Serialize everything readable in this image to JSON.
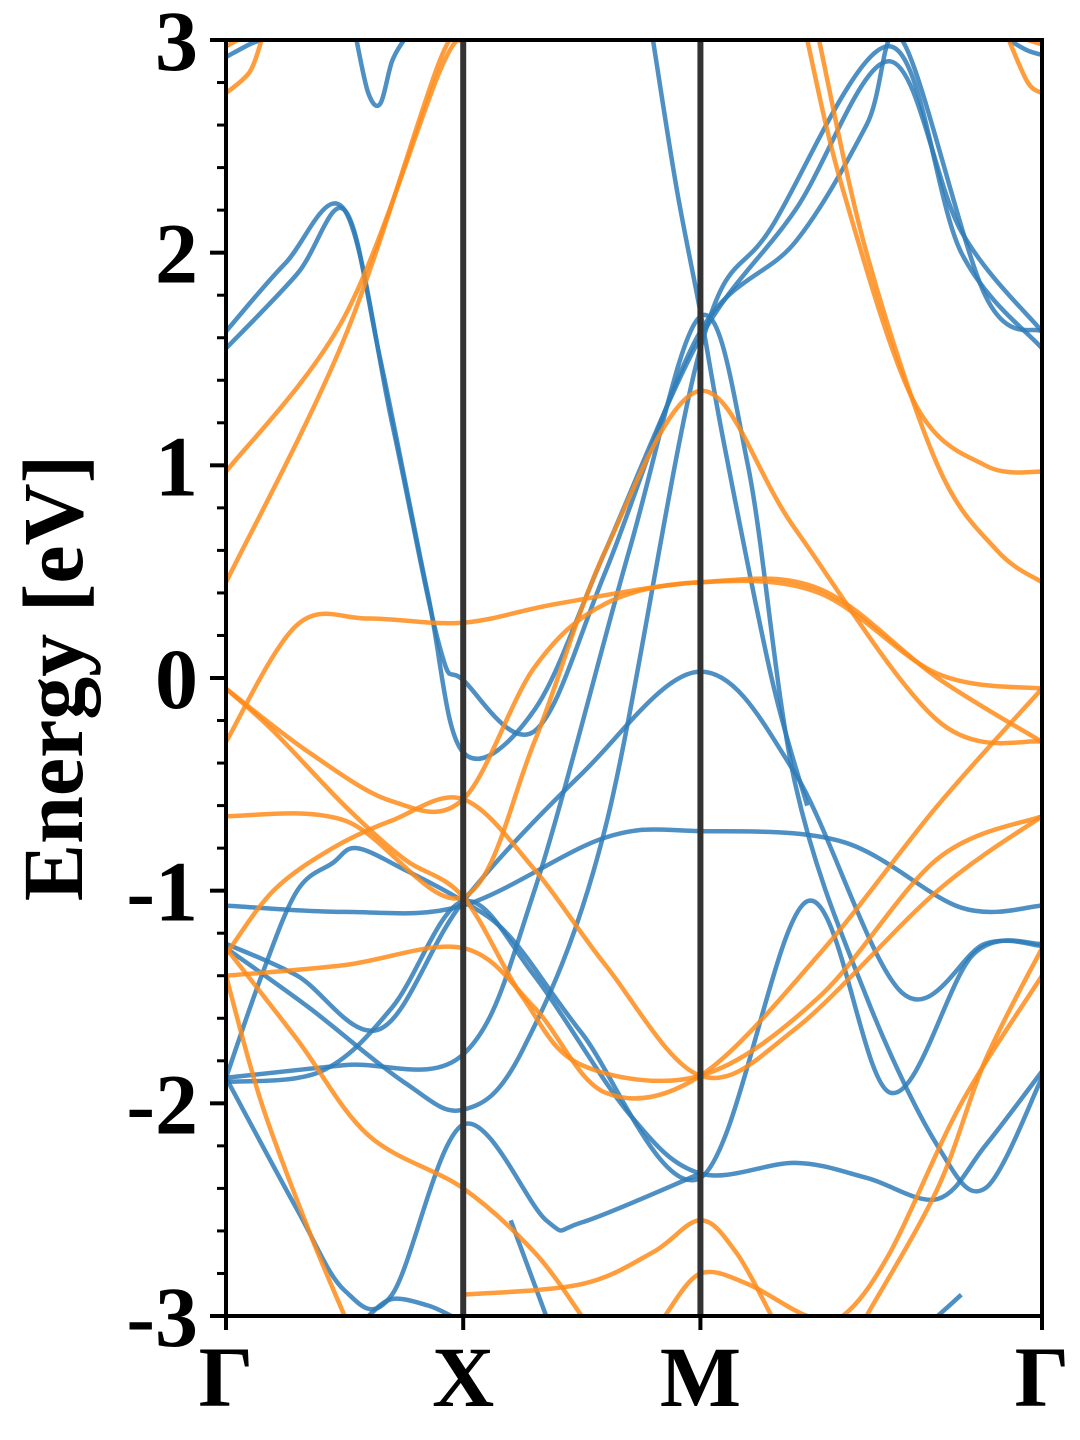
{
  "chart_data": {
    "type": "line",
    "title": "",
    "xlabel": "",
    "ylabel": "Energy [eV]",
    "ylim": [
      -3,
      3
    ],
    "xlim": [
      0,
      3.44
    ],
    "y_ticks": [
      -3,
      -2,
      -1,
      0,
      1,
      2,
      3
    ],
    "y_tick_labels": [
      "-3",
      "-2",
      "-1",
      "0",
      "1",
      "2",
      "3"
    ],
    "y_minor_tick_step": 0.2,
    "high_symmetry_points": [
      {
        "label": "Γ",
        "x": 0
      },
      {
        "label": "X",
        "x": 1
      },
      {
        "label": "M",
        "x": 2
      },
      {
        "label": "Γ",
        "x": 3.44
      }
    ],
    "vertical_lines_at": [
      1,
      2
    ],
    "grid": false,
    "legend": "none",
    "colors": {
      "blue": "#2f7db8",
      "orange": "#ff8c1a",
      "vline": "#333333",
      "axis": "#000000"
    },
    "series": [
      {
        "color": "blue",
        "points": [
          [
            0,
            -1.07
          ],
          [
            0.5,
            -1.1
          ],
          [
            1,
            -1.07
          ],
          [
            1.6,
            -0.75
          ],
          [
            2,
            -0.72
          ],
          [
            2.6,
            -0.77
          ],
          [
            3.1,
            -1.08
          ],
          [
            3.44,
            -1.07
          ]
        ]
      },
      {
        "color": "blue",
        "points": [
          [
            0,
            -1.25
          ],
          [
            0.3,
            -1.4
          ],
          [
            0.65,
            -1.65
          ],
          [
            1,
            -1.05
          ],
          [
            1.5,
            -0.45
          ],
          [
            2,
            0.03
          ],
          [
            2.4,
            -0.45
          ],
          [
            2.85,
            -1.48
          ],
          [
            3.2,
            -1.25
          ],
          [
            3.44,
            -1.26
          ]
        ]
      },
      {
        "color": "blue",
        "points": [
          [
            0,
            -1.27
          ],
          [
            0.35,
            -1.55
          ],
          [
            0.75,
            -1.9
          ],
          [
            1,
            -2.03
          ],
          [
            1.25,
            -1.75
          ],
          [
            1.6,
            -0.7
          ],
          [
            2,
            1.55
          ],
          [
            2.3,
            2.12
          ],
          [
            2.8,
            2.97
          ],
          [
            3.1,
            2.0
          ],
          [
            3.44,
            1.55
          ]
        ]
      },
      {
        "color": "blue",
        "points": [
          [
            0,
            1.55
          ],
          [
            0.3,
            1.9
          ],
          [
            0.5,
            2.2
          ],
          [
            0.65,
            1.5
          ],
          [
            0.85,
            0.4
          ],
          [
            1,
            -0.35
          ],
          [
            1.3,
            -0.15
          ],
          [
            1.6,
            0.6
          ],
          [
            2,
            1.6
          ],
          [
            2.4,
            2.2
          ],
          [
            2.8,
            2.9
          ],
          [
            3.1,
            2.1
          ],
          [
            3.44,
            1.63
          ]
        ]
      },
      {
        "color": "blue",
        "points": [
          [
            0,
            1.63
          ],
          [
            0.25,
            1.95
          ],
          [
            0.5,
            2.2
          ],
          [
            0.7,
            1.2
          ],
          [
            0.9,
            0.15
          ],
          [
            1,
            -0.01
          ],
          [
            1.3,
            -0.25
          ],
          [
            1.6,
            0.5
          ],
          [
            2,
            1.63
          ],
          [
            2.4,
            2.05
          ],
          [
            2.7,
            2.6
          ],
          [
            2.85,
            3.0
          ],
          [
            3.2,
            1.8
          ],
          [
            3.44,
            1.63
          ]
        ]
      },
      {
        "color": "blue",
        "points": [
          [
            0,
            -1.88
          ],
          [
            0.5,
            -1.82
          ],
          [
            1,
            -1.77
          ],
          [
            1.3,
            -1.0
          ],
          [
            1.7,
            0.6
          ],
          [
            2,
            1.7
          ],
          [
            2.2,
            1.0
          ],
          [
            2.4,
            -0.5
          ],
          [
            2.7,
            -1.5
          ],
          [
            3.0,
            -2.2
          ],
          [
            3.2,
            -2.4
          ],
          [
            3.44,
            -1.88
          ]
        ]
      },
      {
        "color": "blue",
        "points": [
          [
            0,
            -1.9
          ],
          [
            0.4,
            -1.85
          ],
          [
            0.7,
            -1.55
          ],
          [
            1,
            -1.05
          ],
          [
            1.3,
            -1.4
          ],
          [
            1.7,
            -2.05
          ],
          [
            2,
            -2.33
          ],
          [
            2.4,
            -2.28
          ],
          [
            2.7,
            -2.35
          ],
          [
            3.0,
            -2.45
          ],
          [
            3.2,
            -2.2
          ],
          [
            3.44,
            -1.85
          ]
        ]
      },
      {
        "color": "blue",
        "points": [
          [
            0,
            -1.88
          ],
          [
            0.15,
            -1.4
          ],
          [
            0.3,
            -1.0
          ],
          [
            0.45,
            -0.87
          ],
          [
            0.55,
            -0.8
          ],
          [
            0.75,
            -0.9
          ],
          [
            1,
            -1.05
          ],
          [
            1.2,
            -1.22
          ],
          [
            1.5,
            -1.67
          ],
          [
            2,
            -2.35
          ],
          [
            2.45,
            -1.05
          ],
          [
            2.8,
            -1.95
          ],
          [
            3.15,
            -1.3
          ],
          [
            3.44,
            -1.25
          ]
        ]
      },
      {
        "color": "blue",
        "points": [
          [
            0,
            -1.88
          ],
          [
            0.3,
            -2.5
          ],
          [
            0.5,
            -2.88
          ],
          [
            0.7,
            -2.9
          ],
          [
            1,
            -2.1
          ],
          [
            1.35,
            -2.55
          ],
          [
            1.5,
            -2.56
          ],
          [
            2,
            -2.33
          ]
        ]
      },
      {
        "color": "blue",
        "points": [
          [
            0.55,
            3.0
          ],
          [
            0.6,
            2.75
          ],
          [
            0.65,
            2.7
          ],
          [
            0.7,
            2.9
          ],
          [
            0.75,
            3.0
          ]
        ]
      },
      {
        "color": "blue",
        "points": [
          [
            0,
            2.92
          ],
          [
            0.1,
            2.98
          ],
          [
            0.15,
            3.0
          ]
        ]
      },
      {
        "color": "blue",
        "points": [
          [
            3.3,
            3.0
          ],
          [
            3.38,
            2.95
          ],
          [
            3.44,
            2.93
          ]
        ]
      },
      {
        "color": "blue",
        "points": [
          [
            1.2,
            -2.55
          ],
          [
            1.35,
            -3.0
          ]
        ]
      },
      {
        "color": "blue",
        "points": [
          [
            0.6,
            -3.0
          ],
          [
            0.7,
            -2.92
          ],
          [
            0.85,
            -2.95
          ],
          [
            0.95,
            -3.0
          ]
        ]
      },
      {
        "color": "blue",
        "points": [
          [
            1.8,
            3.0
          ],
          [
            1.9,
            2.3
          ],
          [
            2,
            1.72
          ],
          [
            2.1,
            1.1
          ],
          [
            2.3,
            0.0
          ],
          [
            2.45,
            -0.6
          ]
        ]
      },
      {
        "color": "blue",
        "points": [
          [
            3.0,
            -3.0
          ],
          [
            3.1,
            -2.9
          ]
        ]
      },
      {
        "color": "orange",
        "points": [
          [
            0,
            -0.05
          ],
          [
            0.35,
            -0.35
          ],
          [
            0.7,
            -0.58
          ],
          [
            1,
            -0.57
          ],
          [
            1.3,
            0.05
          ],
          [
            1.6,
            0.35
          ],
          [
            2,
            0.45
          ],
          [
            2.5,
            0.4
          ],
          [
            3.0,
            0.02
          ],
          [
            3.44,
            -0.05
          ]
        ]
      },
      {
        "color": "orange",
        "points": [
          [
            0,
            -0.3
          ],
          [
            0.3,
            0.25
          ],
          [
            0.6,
            0.28
          ],
          [
            1,
            0.26
          ],
          [
            1.4,
            0.35
          ],
          [
            2,
            0.45
          ],
          [
            2.5,
            0.42
          ],
          [
            3.0,
            0.0
          ],
          [
            3.44,
            -0.3
          ]
        ]
      },
      {
        "color": "orange",
        "points": [
          [
            0,
            -0.65
          ],
          [
            0.5,
            -0.67
          ],
          [
            1,
            -1.03
          ],
          [
            1.3,
            -0.3
          ],
          [
            1.6,
            0.6
          ],
          [
            2,
            1.35
          ],
          [
            2.4,
            0.7
          ],
          [
            3.0,
            -0.2
          ],
          [
            3.44,
            -0.3
          ]
        ]
      },
      {
        "color": "orange",
        "points": [
          [
            0,
            -0.05
          ],
          [
            0.2,
            -0.25
          ],
          [
            0.5,
            -0.6
          ],
          [
            0.75,
            -0.85
          ],
          [
            1,
            -1.03
          ],
          [
            1.25,
            -1.5
          ],
          [
            1.5,
            -1.82
          ],
          [
            2,
            -1.87
          ],
          [
            2.5,
            -1.5
          ],
          [
            3.0,
            -0.85
          ],
          [
            3.44,
            -0.65
          ]
        ]
      },
      {
        "color": "orange",
        "points": [
          [
            0,
            -1.3
          ],
          [
            0.2,
            -1.0
          ],
          [
            0.45,
            -0.8
          ],
          [
            0.7,
            -0.67
          ],
          [
            1,
            -0.57
          ],
          [
            1.3,
            -0.9
          ],
          [
            1.6,
            -1.35
          ],
          [
            2,
            -1.87
          ],
          [
            2.4,
            -1.65
          ],
          [
            3.0,
            -1.0
          ],
          [
            3.44,
            -0.65
          ]
        ]
      },
      {
        "color": "orange",
        "points": [
          [
            0,
            -1.4
          ],
          [
            0.5,
            -1.35
          ],
          [
            1,
            -1.27
          ],
          [
            1.3,
            -1.55
          ],
          [
            1.6,
            -1.95
          ],
          [
            2,
            -1.87
          ],
          [
            2.5,
            -1.3
          ],
          [
            3.0,
            -0.6
          ],
          [
            3.44,
            -0.05
          ]
        ]
      },
      {
        "color": "orange",
        "points": [
          [
            0,
            -1.27
          ],
          [
            0.3,
            -1.7
          ],
          [
            0.6,
            -2.15
          ],
          [
            1,
            -2.4
          ],
          [
            1.3,
            -2.7
          ],
          [
            1.5,
            -3.0
          ]
        ]
      },
      {
        "color": "orange",
        "points": [
          [
            0,
            -1.4
          ],
          [
            0.15,
            -2.0
          ],
          [
            0.35,
            -2.6
          ],
          [
            0.5,
            -3.0
          ]
        ]
      },
      {
        "color": "orange",
        "points": [
          [
            1,
            -2.9
          ],
          [
            1.5,
            -2.85
          ],
          [
            1.8,
            -2.7
          ],
          [
            2,
            -2.55
          ],
          [
            2.15,
            -2.7
          ],
          [
            2.3,
            -3.0
          ]
        ]
      },
      {
        "color": "orange",
        "points": [
          [
            1.85,
            -3.0
          ],
          [
            2,
            -2.8
          ],
          [
            2.2,
            -2.85
          ],
          [
            2.45,
            -3.0
          ],
          [
            2.6,
            -3.0
          ],
          [
            2.8,
            -2.7
          ],
          [
            3.1,
            -2.0
          ],
          [
            3.44,
            -1.4
          ]
        ]
      },
      {
        "color": "orange",
        "points": [
          [
            2.7,
            -3.0
          ],
          [
            3.0,
            -2.4
          ],
          [
            3.2,
            -1.8
          ],
          [
            3.44,
            -1.27
          ]
        ]
      },
      {
        "color": "orange",
        "points": [
          [
            0,
            0.45
          ],
          [
            0.5,
            1.6
          ],
          [
            0.9,
            2.9
          ],
          [
            1,
            3.0
          ]
        ]
      },
      {
        "color": "orange",
        "points": [
          [
            0,
            0.97
          ],
          [
            0.5,
            1.7
          ],
          [
            0.9,
            2.85
          ],
          [
            1,
            3.0
          ]
        ]
      },
      {
        "color": "orange",
        "points": [
          [
            2.45,
            3.0
          ],
          [
            2.6,
            2.3
          ],
          [
            2.9,
            1.3
          ],
          [
            3.2,
            1.0
          ],
          [
            3.44,
            0.97
          ]
        ]
      },
      {
        "color": "orange",
        "points": [
          [
            2.5,
            3.0
          ],
          [
            2.7,
            2.0
          ],
          [
            3.0,
            1.0
          ],
          [
            3.25,
            0.6
          ],
          [
            3.44,
            0.45
          ]
        ]
      },
      {
        "color": "orange",
        "points": [
          [
            0,
            2.75
          ],
          [
            0.1,
            2.85
          ],
          [
            0.15,
            3.0
          ]
        ]
      },
      {
        "color": "orange",
        "points": [
          [
            3.3,
            3.0
          ],
          [
            3.38,
            2.8
          ],
          [
            3.44,
            2.75
          ]
        ]
      },
      {
        "color": "orange",
        "points": [
          [
            0,
            2.97
          ],
          [
            0.05,
            3.0
          ]
        ]
      },
      {
        "color": "orange",
        "points": [
          [
            3.38,
            3.0
          ],
          [
            3.44,
            2.98
          ]
        ]
      }
    ]
  }
}
